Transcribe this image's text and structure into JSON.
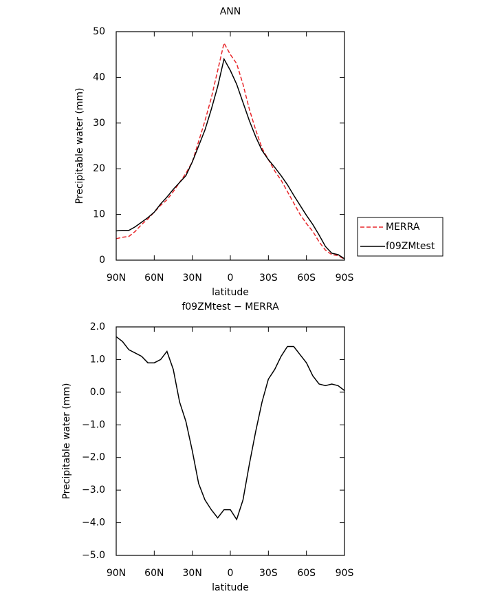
{
  "chart_data": [
    {
      "type": "line",
      "title": "ANN",
      "xlabel": "latitude",
      "ylabel": "Precipitable water (mm)",
      "x": [
        90,
        85,
        80,
        75,
        70,
        65,
        60,
        55,
        50,
        45,
        40,
        35,
        30,
        25,
        20,
        15,
        10,
        5,
        0,
        -5,
        -10,
        -15,
        -20,
        -25,
        -30,
        -35,
        -40,
        -45,
        -50,
        -55,
        -60,
        -65,
        -70,
        -75,
        -80,
        -85,
        -90
      ],
      "series": [
        {
          "name": "MERRA",
          "color": "#e8262a",
          "linestyle": "dashed",
          "values": [
            4.7,
            5,
            5.2,
            6.3,
            7.8,
            9,
            10.5,
            12,
            13.2,
            15,
            17,
            19,
            21.5,
            26,
            30.5,
            35.5,
            41.5,
            47.5,
            45,
            43,
            38.5,
            33,
            28.5,
            24.5,
            22,
            19.5,
            17.5,
            15,
            12.5,
            10,
            8,
            6.3,
            4,
            2.2,
            1.2,
            1,
            0.2
          ]
        },
        {
          "name": "f09ZMtest",
          "color": "#000000",
          "linestyle": "solid",
          "values": [
            6.4,
            6.5,
            6.5,
            7.3,
            8.3,
            9.3,
            10.5,
            12.3,
            13.8,
            15.5,
            17,
            18.5,
            21.5,
            25,
            28.5,
            33,
            38,
            44,
            41.5,
            38.5,
            34.5,
            30.5,
            27,
            24,
            22,
            20.3,
            18.5,
            16.5,
            14.2,
            12,
            9.8,
            7.8,
            5.5,
            3,
            1.5,
            1.2,
            0.3
          ]
        }
      ],
      "xlim": [
        90,
        -90
      ],
      "xticks": [
        {
          "value": 90,
          "label": "90N"
        },
        {
          "value": 60,
          "label": "60N"
        },
        {
          "value": 30,
          "label": "30N"
        },
        0,
        {
          "value": -30,
          "label": "30S"
        },
        {
          "value": -60,
          "label": "60S"
        },
        {
          "value": -90,
          "label": "90S"
        }
      ],
      "ylim": [
        0,
        50
      ],
      "yticks": [
        0,
        10,
        20,
        30,
        40,
        50
      ],
      "legend": "right"
    },
    {
      "type": "line",
      "title": "f09ZMtest − MERRA",
      "xlabel": "latitude",
      "ylabel": "Precipitable water (mm)",
      "x": [
        90,
        85,
        80,
        75,
        70,
        65,
        60,
        55,
        50,
        45,
        40,
        35,
        30,
        25,
        20,
        15,
        10,
        5,
        0,
        -5,
        -10,
        -15,
        -20,
        -25,
        -30,
        -35,
        -40,
        -45,
        -50,
        -55,
        -60,
        -65,
        -70,
        -75,
        -80,
        -85,
        -90
      ],
      "color": "#000000",
      "values": [
        1.7,
        1.55,
        1.3,
        1.2,
        1.1,
        0.9,
        0.9,
        1.0,
        1.25,
        0.7,
        -0.3,
        -0.9,
        -1.8,
        -2.8,
        -3.3,
        -3.6,
        -3.85,
        -3.6,
        -3.6,
        -3.9,
        -3.3,
        -2.2,
        -1.2,
        -0.3,
        0.4,
        0.7,
        1.1,
        1.4,
        1.4,
        1.15,
        0.9,
        0.5,
        0.25,
        0.2,
        0.25,
        0.2,
        0.05
      ],
      "xlim": [
        90,
        -90
      ],
      "xticks": [
        {
          "value": 90,
          "label": "90N"
        },
        {
          "value": 60,
          "label": "60N"
        },
        {
          "value": 30,
          "label": "30N"
        },
        0,
        {
          "value": -30,
          "label": "30S"
        },
        {
          "value": -60,
          "label": "60S"
        },
        {
          "value": -90,
          "label": "90S"
        }
      ],
      "ylim": [
        -5,
        2
      ],
      "yticks": [
        {
          "value": -5,
          "label": "−5.0"
        },
        {
          "value": -4,
          "label": "−4.0"
        },
        {
          "value": -3,
          "label": "−3.0"
        },
        {
          "value": -2,
          "label": "−2.0"
        },
        {
          "value": -1,
          "label": "−1.0"
        },
        {
          "value": 0,
          "label": "0.0"
        },
        {
          "value": 1,
          "label": "1.0"
        },
        {
          "value": 2,
          "label": "2.0"
        }
      ]
    }
  ]
}
